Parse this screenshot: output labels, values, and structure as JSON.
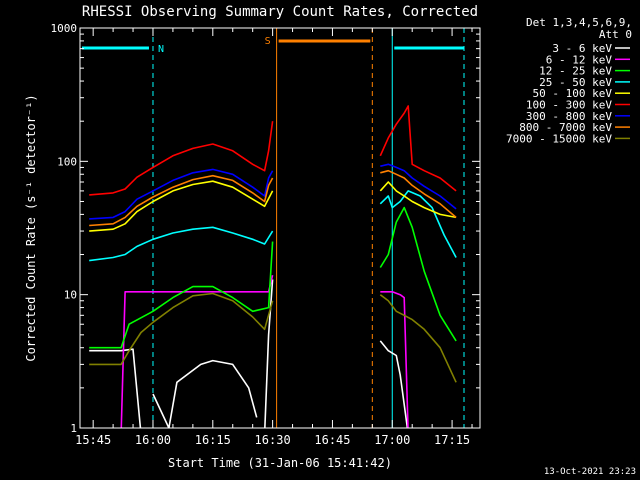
{
  "chart_data": {
    "type": "line",
    "title": "RHESSI Observing Summary Count Rates, Corrected",
    "xlabel": "Start Time (31-Jan-06 15:41:42)",
    "ylabel": "Corrected Count Rate (s⁻¹ detector⁻¹)",
    "x_scale": "time",
    "y_scale": "log",
    "xlim": [
      "15:41:42",
      "17:22:00"
    ],
    "ylim": [
      1,
      1000
    ],
    "x_ticks": [
      "15:45",
      "16:00",
      "16:15",
      "16:30",
      "16:45",
      "17:00",
      "17:15"
    ],
    "y_ticks": [
      "1",
      "10",
      "100",
      "1000"
    ],
    "legend_position": "top-right",
    "legend_header": [
      "Det 1,3,4,5,6,9,",
      "Att 0"
    ],
    "footer_date": "13-Oct-2021 23:23",
    "markers": {
      "night": {
        "label": "N",
        "color": "#00ffff",
        "start": "16:00",
        "end": "17:00"
      },
      "saa": {
        "label": "S",
        "color": "#ff8000",
        "start": "16:31",
        "end": "16:55"
      },
      "data_gap_start": "16:31",
      "data_gap_end": "16:56"
    },
    "series": [
      {
        "name": "3 - 6 keV",
        "color": "#ffffff",
        "segments": [
          [
            [
              "15:44",
              3.8
            ],
            [
              "15:52",
              3.8
            ],
            [
              "15:55",
              3.9
            ],
            [
              "15:57",
              0.9
            ]
          ],
          [
            [
              "16:00",
              1.8
            ],
            [
              "16:04",
              1.0
            ],
            [
              "16:06",
              2.2
            ],
            [
              "16:12",
              3.0
            ],
            [
              "16:15",
              3.2
            ],
            [
              "16:20",
              3.0
            ],
            [
              "16:24",
              2.0
            ],
            [
              "16:26",
              1.2
            ]
          ],
          [
            [
              "16:28",
              0.9
            ],
            [
              "16:29",
              5
            ],
            [
              "16:30",
              13
            ]
          ],
          [
            [
              "16:57",
              4.5
            ],
            [
              "16:59",
              3.8
            ],
            [
              "17:01",
              3.5
            ],
            [
              "17:02",
              2.5
            ],
            [
              "17:03",
              1.5
            ],
            [
              "17:04",
              0.9
            ]
          ]
        ]
      },
      {
        "name": "6 - 12 keV",
        "color": "#ff00ff",
        "segments": [
          [
            [
              "15:52",
              0.9
            ],
            [
              "15:53",
              10.5
            ],
            [
              "16:00",
              10.5
            ],
            [
              "16:10",
              10.5
            ],
            [
              "16:20",
              10.5
            ],
            [
              "16:29",
              10.5
            ],
            [
              "16:30",
              14
            ]
          ],
          [
            [
              "16:57",
              10.5
            ],
            [
              "17:00",
              10.5
            ],
            [
              "17:02",
              10.0
            ],
            [
              "17:03",
              9.5
            ],
            [
              "17:04",
              0.9
            ]
          ]
        ]
      },
      {
        "name": "12 - 25 keV",
        "color": "#00ff00",
        "segments": [
          [
            [
              "15:44",
              4.0
            ],
            [
              "15:52",
              4.0
            ],
            [
              "15:54",
              6.0
            ],
            [
              "16:00",
              7.5
            ],
            [
              "16:05",
              9.5
            ],
            [
              "16:10",
              11.5
            ],
            [
              "16:15",
              11.5
            ],
            [
              "16:20",
              9.5
            ],
            [
              "16:25",
              7.5
            ],
            [
              "16:29",
              8
            ],
            [
              "16:30",
              25
            ]
          ],
          [
            [
              "16:57",
              16
            ],
            [
              "16:59",
              20
            ],
            [
              "17:01",
              35
            ],
            [
              "17:03",
              45
            ],
            [
              "17:05",
              32
            ],
            [
              "17:08",
              15
            ],
            [
              "17:12",
              7
            ],
            [
              "17:16",
              4.5
            ]
          ]
        ]
      },
      {
        "name": "25 - 50 keV",
        "color": "#00ffff",
        "segments": [
          [
            [
              "15:44",
              18
            ],
            [
              "15:50",
              19
            ],
            [
              "15:53",
              20
            ],
            [
              "15:56",
              23
            ],
            [
              "16:00",
              26
            ],
            [
              "16:05",
              29
            ],
            [
              "16:10",
              31
            ],
            [
              "16:15",
              32
            ],
            [
              "16:20",
              29
            ],
            [
              "16:25",
              26
            ],
            [
              "16:28",
              24
            ],
            [
              "16:30",
              30
            ]
          ],
          [
            [
              "16:57",
              48
            ],
            [
              "16:59",
              55
            ],
            [
              "17:00",
              45
            ],
            [
              "17:02",
              50
            ],
            [
              "17:04",
              60
            ],
            [
              "17:07",
              55
            ],
            [
              "17:10",
              45
            ],
            [
              "17:13",
              28
            ],
            [
              "17:16",
              19
            ]
          ]
        ]
      },
      {
        "name": "50 - 100 keV",
        "color": "#ffff00",
        "segments": [
          [
            [
              "15:44",
              30
            ],
            [
              "15:50",
              31
            ],
            [
              "15:53",
              34
            ],
            [
              "15:56",
              42
            ],
            [
              "16:00",
              50
            ],
            [
              "16:05",
              60
            ],
            [
              "16:10",
              67
            ],
            [
              "16:15",
              71
            ],
            [
              "16:20",
              64
            ],
            [
              "16:25",
              52
            ],
            [
              "16:28",
              46
            ],
            [
              "16:30",
              60
            ]
          ],
          [
            [
              "16:57",
              60
            ],
            [
              "16:59",
              70
            ],
            [
              "17:01",
              60
            ],
            [
              "17:03",
              55
            ],
            [
              "17:05",
              50
            ],
            [
              "17:08",
              45
            ],
            [
              "17:12",
              40
            ],
            [
              "17:16",
              38
            ]
          ]
        ]
      },
      {
        "name": "100 - 300 keV",
        "color": "#ff0000",
        "segments": [
          [
            [
              "15:44",
              56
            ],
            [
              "15:50",
              58
            ],
            [
              "15:53",
              62
            ],
            [
              "15:56",
              76
            ],
            [
              "16:00",
              90
            ],
            [
              "16:05",
              110
            ],
            [
              "16:10",
              125
            ],
            [
              "16:15",
              135
            ],
            [
              "16:20",
              120
            ],
            [
              "16:25",
              95
            ],
            [
              "16:28",
              85
            ],
            [
              "16:29",
              120
            ],
            [
              "16:30",
              200
            ]
          ],
          [
            [
              "16:57",
              110
            ],
            [
              "16:59",
              150
            ],
            [
              "17:01",
              190
            ],
            [
              "17:03",
              230
            ],
            [
              "17:04",
              260
            ],
            [
              "17:05",
              95
            ],
            [
              "17:08",
              85
            ],
            [
              "17:12",
              75
            ],
            [
              "17:16",
              60
            ]
          ]
        ]
      },
      {
        "name": "300 - 800 keV",
        "color": "#0000ff",
        "segments": [
          [
            [
              "15:44",
              37
            ],
            [
              "15:50",
              38
            ],
            [
              "15:53",
              42
            ],
            [
              "15:56",
              52
            ],
            [
              "16:00",
              60
            ],
            [
              "16:05",
              72
            ],
            [
              "16:10",
              82
            ],
            [
              "16:15",
              87
            ],
            [
              "16:20",
              80
            ],
            [
              "16:25",
              64
            ],
            [
              "16:28",
              55
            ],
            [
              "16:29",
              75
            ],
            [
              "16:30",
              85
            ]
          ],
          [
            [
              "16:57",
              92
            ],
            [
              "16:59",
              95
            ],
            [
              "17:01",
              90
            ],
            [
              "17:03",
              85
            ],
            [
              "17:05",
              75
            ],
            [
              "17:08",
              65
            ],
            [
              "17:12",
              55
            ],
            [
              "17:16",
              44
            ]
          ]
        ]
      },
      {
        "name": "800 - 7000 keV",
        "color": "#ff8000",
        "segments": [
          [
            [
              "15:44",
              33
            ],
            [
              "15:50",
              34
            ],
            [
              "15:53",
              38
            ],
            [
              "15:56",
              46
            ],
            [
              "16:00",
              54
            ],
            [
              "16:05",
              64
            ],
            [
              "16:10",
              73
            ],
            [
              "16:15",
              78
            ],
            [
              "16:20",
              72
            ],
            [
              "16:25",
              58
            ],
            [
              "16:28",
              50
            ],
            [
              "16:29",
              66
            ],
            [
              "16:30",
              75
            ]
          ],
          [
            [
              "16:57",
              82
            ],
            [
              "16:59",
              85
            ],
            [
              "17:01",
              80
            ],
            [
              "17:03",
              75
            ],
            [
              "17:05",
              66
            ],
            [
              "17:08",
              57
            ],
            [
              "17:12",
              48
            ],
            [
              "17:16",
              38
            ]
          ]
        ]
      },
      {
        "name": "7000 - 15000 keV",
        "color": "#808000",
        "segments": [
          [
            [
              "15:44",
              3.0
            ],
            [
              "15:52",
              3.0
            ],
            [
              "15:54",
              3.8
            ],
            [
              "15:57",
              5.2
            ],
            [
              "16:00",
              6.2
            ],
            [
              "16:05",
              8.0
            ],
            [
              "16:10",
              9.8
            ],
            [
              "16:15",
              10.2
            ],
            [
              "16:20",
              9.0
            ],
            [
              "16:25",
              6.8
            ],
            [
              "16:28",
              5.5
            ],
            [
              "16:30",
              9
            ]
          ],
          [
            [
              "16:57",
              10
            ],
            [
              "16:59",
              9
            ],
            [
              "17:01",
              7.5
            ],
            [
              "17:03",
              7.0
            ],
            [
              "17:05",
              6.5
            ],
            [
              "17:08",
              5.5
            ],
            [
              "17:12",
              4.0
            ],
            [
              "17:16",
              2.2
            ]
          ]
        ]
      }
    ]
  }
}
